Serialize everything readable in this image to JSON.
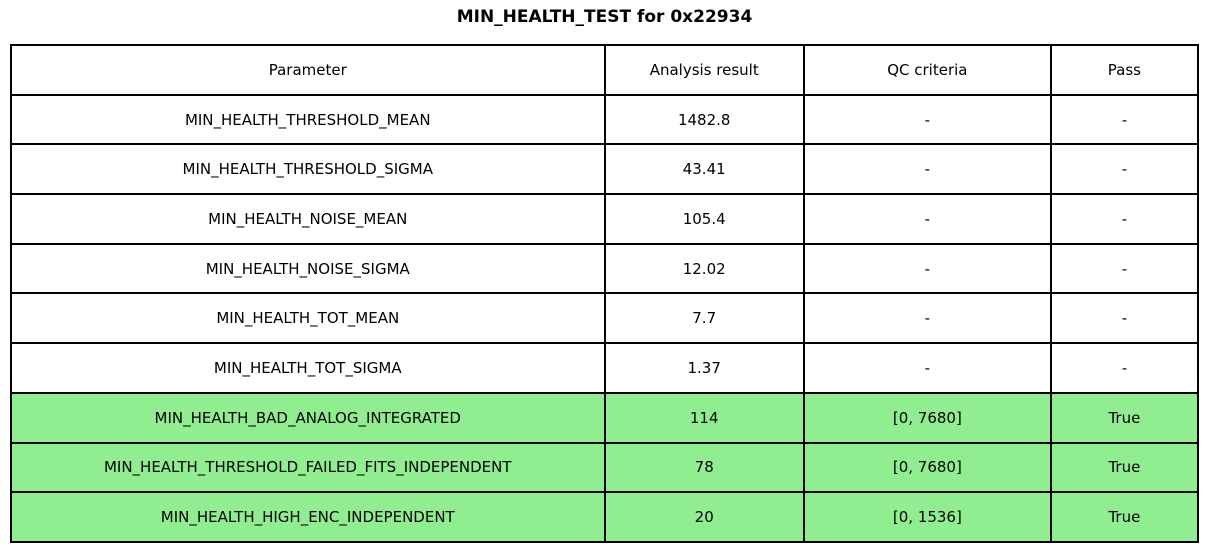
{
  "title": "MIN_HEALTH_TEST for 0x22934",
  "chart_data": {
    "type": "table",
    "title": "MIN_HEALTH_TEST for 0x22934",
    "columns": [
      "Parameter",
      "Analysis result",
      "QC criteria",
      "Pass"
    ],
    "rows": [
      [
        "MIN_HEALTH_THRESHOLD_MEAN",
        "1482.8",
        "-",
        "-"
      ],
      [
        "MIN_HEALTH_THRESHOLD_SIGMA",
        "43.41",
        "-",
        "-"
      ],
      [
        "MIN_HEALTH_NOISE_MEAN",
        "105.4",
        "-",
        "-"
      ],
      [
        "MIN_HEALTH_NOISE_SIGMA",
        "12.02",
        "-",
        "-"
      ],
      [
        "MIN_HEALTH_TOT_MEAN",
        "7.7",
        "-",
        "-"
      ],
      [
        "MIN_HEALTH_TOT_SIGMA",
        "1.37",
        "-",
        "-"
      ],
      [
        "MIN_HEALTH_BAD_ANALOG_INTEGRATED",
        "114",
        "[0, 7680]",
        "True"
      ],
      [
        "MIN_HEALTH_THRESHOLD_FAILED_FITS_INDEPENDENT",
        "78",
        "[0, 7680]",
        "True"
      ],
      [
        "MIN_HEALTH_HIGH_ENC_INDEPENDENT",
        "20",
        "[0, 1536]",
        "True"
      ]
    ],
    "highlighted_rows": [
      6,
      7,
      8
    ],
    "highlight_color": "#90EE90",
    "border_color": "#000000",
    "background_color": "#FFFFFF"
  }
}
